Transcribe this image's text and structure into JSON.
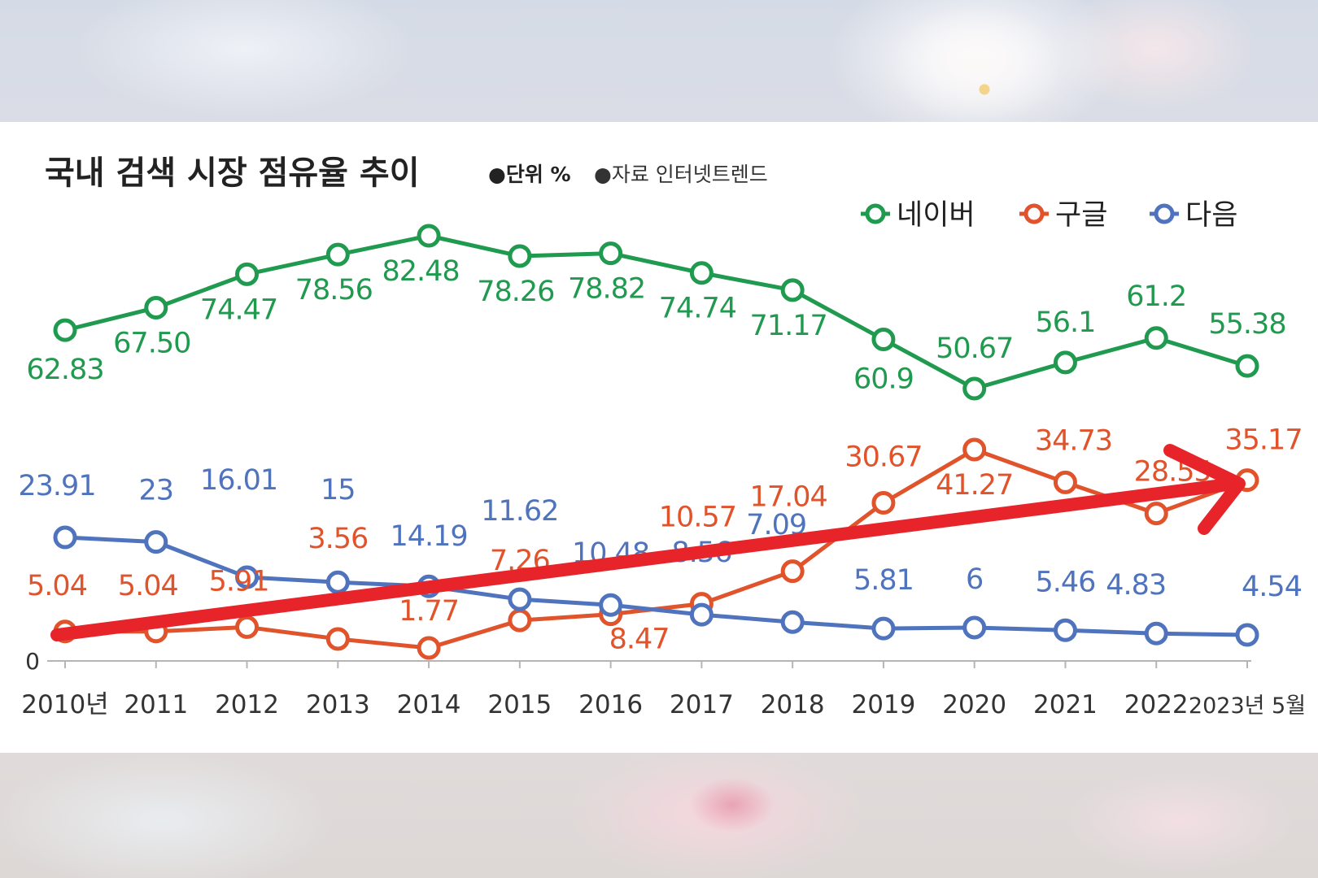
{
  "title": "국내 검색 시장 점유율 추이",
  "unit_note": "●단위 %",
  "source_note": "●자료 인터넷트렌드",
  "chart_data": {
    "type": "line",
    "title": "국내 검색 시장 점유율 추이",
    "xlabel": "",
    "ylabel": "",
    "categories": [
      "2010년",
      "2011",
      "2012",
      "2013",
      "2014",
      "2015",
      "2016",
      "2017",
      "2018",
      "2019",
      "2020",
      "2021",
      "2022",
      "2023년 5월"
    ],
    "y_tick_labels": [
      "0"
    ],
    "legend": [
      "네이버",
      "구글",
      "다음"
    ],
    "legend_position": "top-right",
    "grid": false,
    "series": [
      {
        "name": "네이버",
        "color": "#1f9a4f",
        "values": [
          62.83,
          67.5,
          74.47,
          78.56,
          82.48,
          78.26,
          78.82,
          74.74,
          71.17,
          60.9,
          50.67,
          56.1,
          61.2,
          55.38
        ],
        "labels": [
          "62.83",
          "67.50",
          "74.47",
          "78.56",
          "82.48",
          "78.26",
          "78.82",
          "74.74",
          "71.17",
          "60.9",
          "50.67",
          "56.1",
          "61.2",
          "55.38"
        ]
      },
      {
        "name": "구글",
        "color": "#e0532b",
        "values": [
          5.04,
          5.04,
          5.91,
          3.56,
          1.77,
          7.26,
          8.47,
          10.57,
          17.04,
          30.67,
          41.27,
          34.73,
          28.55,
          35.17
        ],
        "labels": [
          "5.04",
          "5.04",
          "5.91",
          "3.56",
          "1.77",
          "7.26",
          "8.47",
          "10.57",
          "17.04",
          "30.67",
          "41.27",
          "34.73",
          "28.55",
          "35.17"
        ]
      },
      {
        "name": "다음",
        "color": "#4f73bd",
        "values": [
          23.91,
          23,
          16.01,
          15,
          14.19,
          11.62,
          10.48,
          8.56,
          7.09,
          5.81,
          6,
          5.46,
          4.83,
          4.54
        ],
        "labels": [
          "23.91",
          "23",
          "16.01",
          "15",
          "14.19",
          "11.62",
          "10.48",
          "8.56",
          "7.09",
          "5.81",
          "6",
          "5.46",
          "4.83",
          "4.54"
        ]
      }
    ]
  },
  "arrow_color": "#e8242b"
}
